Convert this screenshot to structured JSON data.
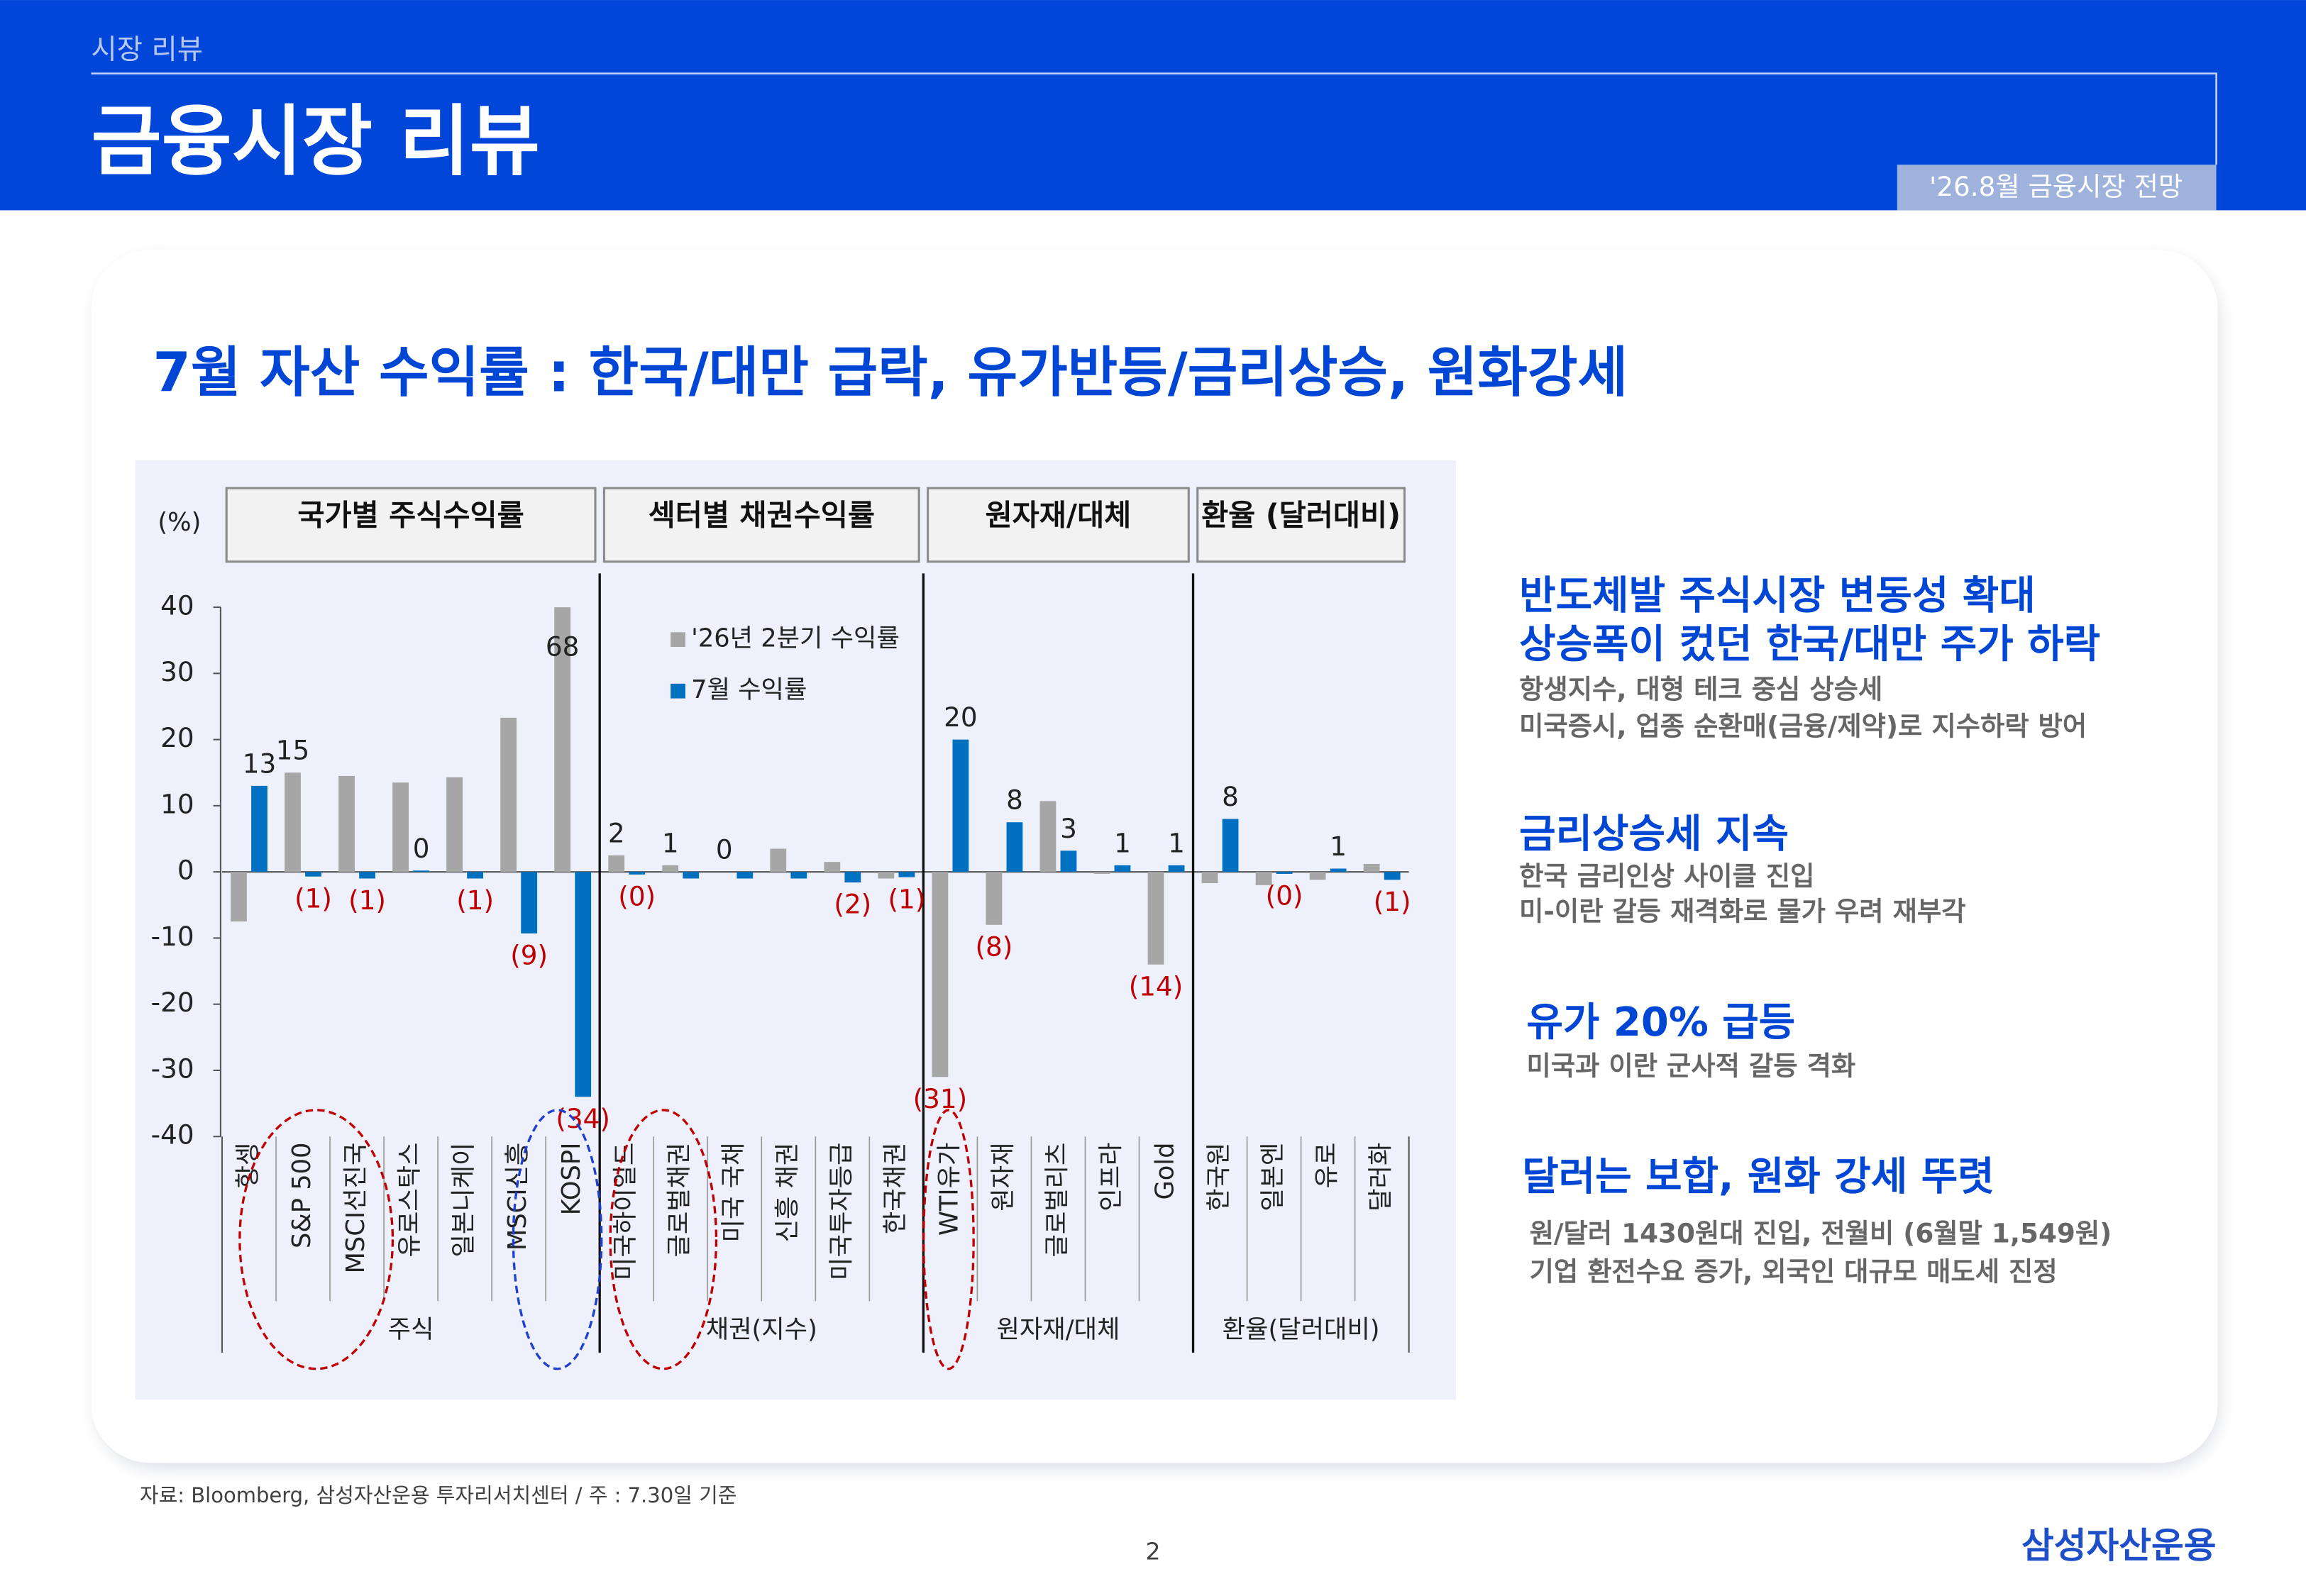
{
  "header": {
    "section": "시장 리뷰",
    "title": "금융시장 리뷰",
    "tag": "'26.8월 금융시장 전망"
  },
  "headline": "7월 자산 수익률 : 한국/대만 급락, 유가반등/금리상승, 원화강세",
  "chart_data": {
    "type": "bar",
    "unit_label": "(%)",
    "groups": [
      {
        "header": "국가별 주식수익률",
        "label": "주식",
        "categories": [
          "항셍",
          "S&P 500",
          "MSCI선진국",
          "유로스탁스",
          "일본니케이",
          "MSCI신흥",
          "KOSPI"
        ]
      },
      {
        "header": "섹터별 채권수익률",
        "label": "채권(지수)",
        "categories": [
          "미국하이일드",
          "글로벌채권",
          "미국 국채",
          "신흥 채권",
          "미국투자등급",
          "한국채권"
        ]
      },
      {
        "header": "원자재/대체",
        "label": "원자재/대체",
        "categories": [
          "WTI유가",
          "원자재",
          "글로벌리츠",
          "인프라",
          "Gold"
        ]
      },
      {
        "header": "환율 (달러대비)",
        "label": "환율(달러대비)",
        "categories": [
          "한국원",
          "일본엔",
          "유로",
          "달러화"
        ]
      }
    ],
    "series": [
      {
        "name": "'26년 2분기 수익률",
        "color": "#a6a6a6",
        "values": [
          -7.5,
          15,
          14.5,
          13.5,
          14.3,
          23.3,
          68,
          2.5,
          1,
          0,
          3.5,
          1.5,
          -1,
          -31,
          -8,
          10.7,
          -0.3,
          -14,
          -1.7,
          -2,
          -1.2,
          1.2
        ],
        "value_labels": [
          null,
          "15",
          null,
          null,
          null,
          null,
          "68",
          "2",
          "1",
          "0",
          null,
          null,
          null,
          "(31)",
          "(8)",
          null,
          null,
          "(14)",
          null,
          null,
          null,
          null
        ]
      },
      {
        "name": "7월 수익률",
        "color": "#0070c0",
        "values": [
          13,
          -0.7,
          -1,
          0.2,
          -1,
          -9.3,
          -34,
          -0.4,
          -1,
          -1,
          -1,
          -1.6,
          -0.8,
          20,
          7.5,
          3.2,
          1,
          1,
          8,
          -0.3,
          0.5,
          -1.2
        ],
        "value_labels": [
          "13",
          "(1)",
          "(1)",
          "0",
          "(1)",
          "(9)",
          "(34)",
          "(0)",
          null,
          null,
          null,
          "(2)",
          "(1)",
          "20",
          "8",
          "3",
          "1",
          "1",
          "8",
          "(0)",
          "1",
          "(1)"
        ]
      }
    ],
    "ylim": [
      -40,
      40
    ],
    "yticks": [
      -40,
      -30,
      -20,
      -10,
      0,
      10,
      20,
      30,
      40
    ],
    "grid": false
  },
  "notes": [
    {
      "headline": [
        "반도체발 주식시장 변동성 확대",
        "상승폭이 컸던 한국/대만 주가 하락"
      ],
      "lines": [
        "항생지수, 대형 테크 중심 상승세",
        "미국증시, 업종 순환매(금융/제약)로 지수하락 방어"
      ]
    },
    {
      "headline": [
        "금리상승세 지속"
      ],
      "lines": [
        "한국 금리인상 사이클 진입",
        "미-이란 갈등 재격화로 물가 우려 재부각"
      ]
    },
    {
      "headline": [
        "유가 20% 급등"
      ],
      "lines": [
        "미국과 이란 군사적 갈등 격화"
      ]
    },
    {
      "headline": [
        "달러는 보합, 원화 강세 뚜렷"
      ],
      "lines": [
        "원/달러 1430원대 진입, 전월비  (6월말 1,549원)",
        "기업 환전수요 증가, 외국인 대규모 매도세 진정"
      ]
    }
  ],
  "footer": {
    "source": "자료: Bloomberg, 삼성자산운용 투자리서치센터 / 주 : 7.30일 기준",
    "page": "2",
    "brand": "삼성자산운용"
  }
}
